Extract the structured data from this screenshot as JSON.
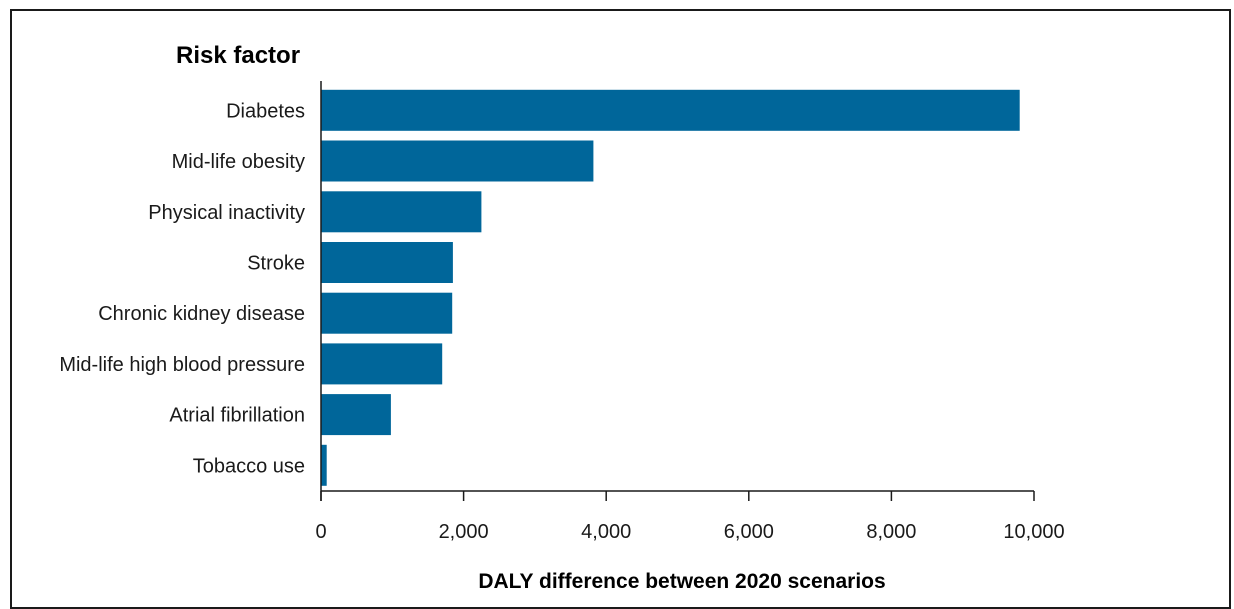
{
  "chart_data": {
    "type": "bar",
    "orientation": "horizontal",
    "title": "Risk factor",
    "xlabel": "DALY difference between 2020 scenarios",
    "ylabel": "",
    "categories": [
      "Diabetes",
      "Mid-life obesity",
      "Physical inactivity",
      "Stroke",
      "Chronic kidney disease",
      "Mid-life high blood pressure",
      "Atrial fibrillation",
      "Tobacco use"
    ],
    "values": [
      9800,
      3820,
      2250,
      1850,
      1840,
      1700,
      980,
      80
    ],
    "xlim": [
      0,
      10000
    ],
    "ticks": [
      0,
      2000,
      4000,
      6000,
      8000,
      10000
    ],
    "tick_labels": [
      "0",
      "2,000",
      "4,000",
      "6,000",
      "8,000",
      "10,000"
    ],
    "grid": false,
    "legend": "none",
    "bar_color": "#00669a"
  }
}
